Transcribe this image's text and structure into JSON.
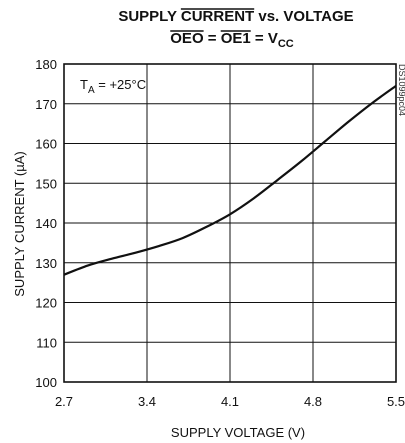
{
  "chart_data": {
    "type": "line",
    "title": {
      "line1_pre": "SUPPLY ",
      "line1_over": "CURRENT",
      "line1_post": " vs. VOLTAGE",
      "line2_oe0": "OEO",
      "line2_eq": " = ",
      "line2_oe1": "OE1",
      "line2_eq2": " = V",
      "line2_sub": "CC"
    },
    "xlabel": "SUPPLY VOLTAGE (V)",
    "ylabel": "SUPPLY CURRENT (µA)",
    "xlim": [
      2.7,
      5.5
    ],
    "ylim": [
      100,
      180
    ],
    "x_ticks": [
      "2.7",
      "3.4",
      "4.1",
      "4.8",
      "5.5"
    ],
    "y_ticks": [
      "100",
      "110",
      "120",
      "130",
      "140",
      "150",
      "160",
      "170",
      "180"
    ],
    "grid": true,
    "annotation": {
      "main": "T",
      "sub": "A",
      "rest": " = +25°C"
    },
    "side_label": "DS1099pc04",
    "series": [
      {
        "x": [
          2.7,
          2.9,
          3.1,
          3.3,
          3.5,
          3.7,
          3.9,
          4.1,
          4.3,
          4.5,
          4.7,
          4.9,
          5.1,
          5.3,
          5.5
        ],
        "values": [
          127,
          129.3,
          131,
          132.5,
          134.2,
          136.2,
          139,
          142.2,
          146.2,
          150.8,
          155.5,
          160.5,
          165.5,
          170.2,
          174.5
        ]
      }
    ]
  }
}
